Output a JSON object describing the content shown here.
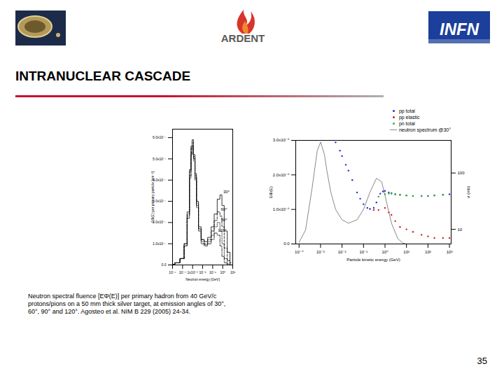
{
  "slide": {
    "logos": [
      "ARDENT",
      "INFN"
    ],
    "title": "INTRANUCLEAR CASCADE",
    "caption": "Neutron spectral fluence [EΦ(E)] per primary hadron from 40 GeV/c protons/pions on a 50 mm thick silver target, at emission angles of 30°, 60°, 90° and 120°. Agosteo et al. NIM B 229 (2005) 24-34.",
    "page": "35"
  },
  "chart_data": [
    {
      "type": "line",
      "x_label": "Neutron energy [GeV]",
      "y_label": "EΦ(E) per primary particle [cm⁻²]",
      "log": "x",
      "grid": false,
      "xlim": [
        1e-05,
        10
      ],
      "xticks": [
        {
          "value": 1e-05,
          "label": "10⁻⁵"
        },
        {
          "value": 0.0001,
          "label": "10⁻⁴"
        },
        {
          "value": 0.001,
          "label": "1x10⁻³"
        },
        {
          "value": 0.01,
          "label": "10⁻²"
        },
        {
          "value": 0.1,
          "label": "10⁻¹"
        },
        {
          "value": 1,
          "label": "10⁰"
        },
        {
          "value": 10,
          "label": "10¹"
        }
      ],
      "ylim": [
        0,
        6.4e-07
      ],
      "yticks": [
        {
          "value": 0,
          "label": "0.0"
        },
        {
          "value": 1e-07,
          "label": "1.0x10⁻⁷"
        },
        {
          "value": 2e-07,
          "label": "2.0x10⁻⁷"
        },
        {
          "value": 3e-07,
          "label": "3.0x10⁻⁷"
        },
        {
          "value": 4e-07,
          "label": "4.0x10⁻⁷"
        },
        {
          "value": 5e-07,
          "label": "5.0x10⁻⁷"
        },
        {
          "value": 6e-07,
          "label": "6.0x10⁻⁷"
        }
      ],
      "x": [
        1e-05,
        3e-05,
        0.0001,
        0.0002,
        0.0004,
        0.0006,
        0.0008,
        0.001,
        0.0015,
        0.002,
        0.003,
        0.005,
        0.01,
        0.02,
        0.05,
        0.1,
        0.2,
        0.4,
        0.7,
        1,
        2,
        4,
        7
      ],
      "series": [
        {
          "name": "30°",
          "color": "#000000",
          "line_style": "solid",
          "values": [
            2e-09,
            1e-08,
            3e-08,
            1e-07,
            2.5e-07,
            4.5e-07,
            5.6e-07,
            5.9e-07,
            5.2e-07,
            4.3e-07,
            3e-07,
            1.8e-07,
            1.2e-07,
            1.1e-07,
            1.3e-07,
            1.8e-07,
            2.4e-07,
            3.1e-07,
            3.3e-07,
            2.8e-07,
            1.6e-07,
            6e-08,
            1e-08
          ]
        },
        {
          "name": "60°",
          "color": "#000000",
          "line_style": "dashed",
          "values": [
            2e-09,
            1e-08,
            3e-08,
            1e-07,
            2.4e-07,
            4.4e-07,
            5.5e-07,
            5.8e-07,
            5.1e-07,
            4.2e-07,
            2.9e-07,
            1.7e-07,
            1.2e-07,
            1e-07,
            1.2e-07,
            1.6e-07,
            2.1e-07,
            2.5e-07,
            2.3e-07,
            1.8e-07,
            8e-08,
            2e-08,
            2e-09
          ]
        },
        {
          "name": "90°",
          "color": "#000000",
          "line_style": "dotted",
          "values": [
            2e-09,
            1e-08,
            3e-08,
            9e-08,
            2.3e-07,
            4.2e-07,
            5.3e-07,
            5.6e-07,
            5e-07,
            4.1e-07,
            2.8e-07,
            1.7e-07,
            1.1e-07,
            9.5e-08,
            1.1e-07,
            1.4e-07,
            1.8e-07,
            2e-07,
            1.6e-07,
            1e-07,
            3e-08,
            5e-09,
            0
          ]
        },
        {
          "name": "120°",
          "color": "#000000",
          "line_style": "dashdot",
          "values": [
            2e-09,
            1e-08,
            3e-08,
            9e-08,
            2.2e-07,
            4.1e-07,
            5.2e-07,
            5.5e-07,
            4.9e-07,
            4e-07,
            2.7e-07,
            1.6e-07,
            1e-07,
            9e-08,
            1e-07,
            1.2e-07,
            1.5e-07,
            1.4e-07,
            9e-08,
            4e-08,
            1e-08,
            0,
            0
          ]
        }
      ]
    },
    {
      "type": "scatter",
      "x_label": "Particle kinetic energy (GeV)",
      "y_label": "EΦ(E)",
      "y2_label": "σ (mb)",
      "log": "x",
      "grid": false,
      "legend": "top-right",
      "xlim": [
        7e-05,
        1200
      ],
      "xticks": [
        {
          "value": 0.0001,
          "label": "10⁻⁴"
        },
        {
          "value": 0.001,
          "label": "10⁻³"
        },
        {
          "value": 0.01,
          "label": "10⁻²"
        },
        {
          "value": 0.1,
          "label": "10⁻¹"
        },
        {
          "value": 1,
          "label": "10⁰"
        },
        {
          "value": 10,
          "label": "10¹"
        },
        {
          "value": 100,
          "label": "10²"
        },
        {
          "value": 1000,
          "label": "10³"
        }
      ],
      "ylim": [
        0,
        3e-06
      ],
      "yticks": [
        {
          "value": 0,
          "label": "0.0"
        },
        {
          "value": 1e-06,
          "label": "1.0x10⁻⁶"
        },
        {
          "value": 2e-06,
          "label": "2.0x10⁻⁶"
        },
        {
          "value": 3e-06,
          "label": "3.0x10⁻⁶"
        }
      ],
      "y2lim": [
        5.5,
        380
      ],
      "y2ticks": [
        10,
        100
      ],
      "series": [
        {
          "name": "pp total",
          "color": "#2030d0",
          "type": "scatter",
          "marker": "dot",
          "axis": "y2",
          "x": [
            0.005,
            0.008,
            0.01,
            0.015,
            0.02,
            0.03,
            0.05,
            0.07,
            0.1,
            0.15,
            0.2,
            0.3,
            0.4,
            0.6,
            0.8,
            1,
            1.5,
            2,
            3,
            5,
            10,
            20,
            50,
            100,
            200,
            500,
            1000
          ],
          "values": [
            350,
            250,
            200,
            140,
            110,
            75,
            45,
            35,
            28,
            24,
            23,
            24,
            30,
            43,
            47,
            48,
            45,
            44,
            42,
            41,
            40,
            39,
            39,
            39,
            40,
            41,
            42
          ]
        },
        {
          "name": "pp elastic",
          "color": "#d02020",
          "type": "scatter",
          "marker": "dot",
          "axis": "y2",
          "x": [
            0.3,
            0.5,
            1,
            1.5,
            2,
            3,
            5,
            10,
            20,
            50,
            100,
            200,
            500,
            1000
          ],
          "values": [
            22,
            22,
            24,
            20,
            18,
            14,
            11,
            10,
            9,
            8,
            7.5,
            7,
            7,
            7
          ]
        },
        {
          "name": "pn total",
          "color": "#30b030",
          "type": "scatter",
          "marker": "dot",
          "axis": "y2",
          "x": [
            0.5,
            1,
            1.5,
            2,
            3,
            5,
            10,
            20,
            50,
            100,
            200,
            500
          ],
          "values": [
            38,
            42,
            43,
            43,
            42,
            41,
            40,
            39,
            39,
            39,
            40,
            41
          ]
        },
        {
          "name": "neutron spectrum @30°",
          "color": "#888888",
          "type": "line",
          "line_style": "solid",
          "x": [
            0.0001,
            0.0002,
            0.0004,
            0.0007,
            0.001,
            0.0015,
            0.002,
            0.003,
            0.005,
            0.01,
            0.02,
            0.05,
            0.1,
            0.2,
            0.4,
            0.7,
            1,
            2,
            4,
            7,
            10
          ],
          "values": [
            5e-08,
            4e-07,
            1.6e-06,
            2.7e-06,
            2.95e-06,
            2.6e-06,
            2.1e-06,
            1.5e-06,
            1e-06,
            7e-07,
            6e-07,
            7e-07,
            1e-06,
            1.5e-06,
            1.9e-06,
            1.8e-06,
            1.4e-06,
            6e-07,
            1.5e-07,
            2e-08,
            0
          ]
        }
      ]
    }
  ]
}
